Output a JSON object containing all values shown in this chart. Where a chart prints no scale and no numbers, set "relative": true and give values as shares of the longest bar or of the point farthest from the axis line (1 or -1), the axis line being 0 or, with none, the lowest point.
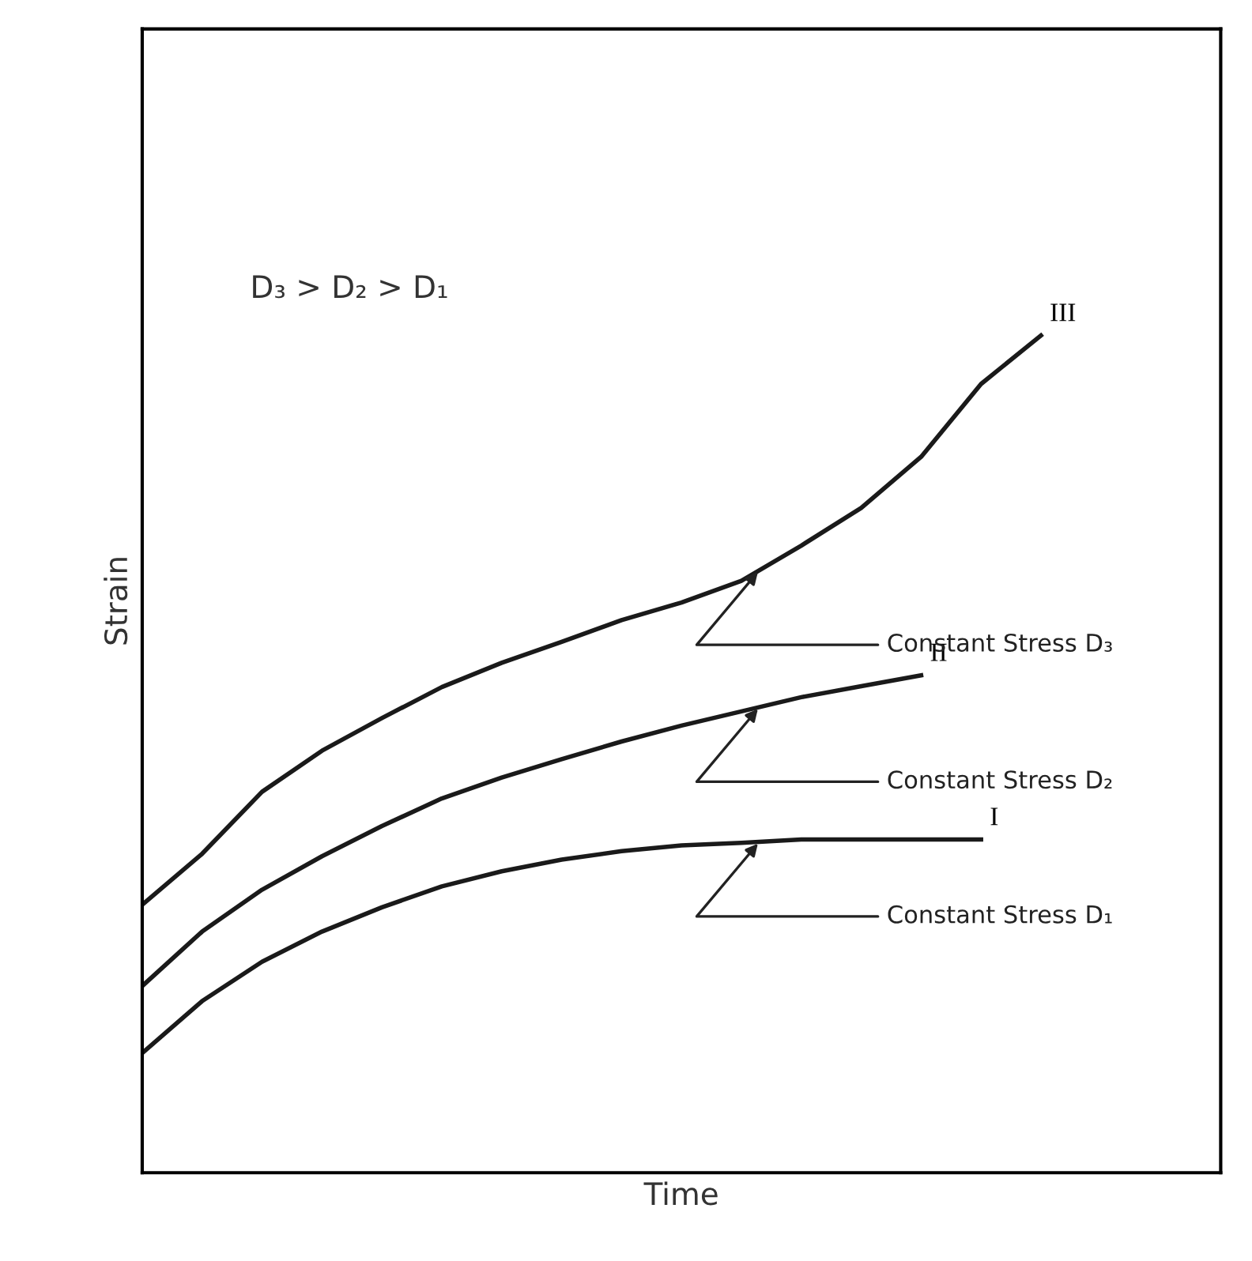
{
  "chart_data": {
    "type": "line",
    "relative": true,
    "xlabel": "Time",
    "ylabel": "Strain",
    "tick_labels": false,
    "legend": false,
    "marker": "none",
    "line_style": "solid",
    "categories": [
      null,
      null,
      null,
      null,
      null,
      null,
      null,
      null,
      null,
      null,
      null,
      null,
      null,
      null,
      null,
      null,
      null,
      null,
      null
    ],
    "series": [
      {
        "name": "I",
        "color": "#1a1a1a",
        "values": [
          0.143,
          0.205,
          0.252,
          0.288,
          0.317,
          0.342,
          0.36,
          0.374,
          0.384,
          0.391,
          0.394,
          0.398,
          0.398,
          0.398,
          0.398,
          null,
          null,
          null,
          null
        ]
      },
      {
        "name": "II",
        "color": "#1a1a1a",
        "values": [
          0.223,
          0.288,
          0.338,
          0.378,
          0.414,
          0.447,
          0.472,
          0.494,
          0.515,
          0.534,
          0.551,
          0.568,
          0.581,
          0.594,
          null,
          null,
          null,
          null,
          null
        ]
      },
      {
        "name": "III",
        "color": "#1a1a1a",
        "values": [
          0.32,
          0.381,
          0.455,
          0.504,
          0.543,
          0.58,
          0.609,
          0.634,
          0.66,
          0.681,
          0.707,
          0.749,
          0.794,
          0.855,
          0.942,
          1,
          null,
          null,
          null
        ]
      }
    ],
    "annotations": [
      "D₃ > D₂ > D₁",
      "Constant Stress D₃",
      "Constant Stress D₂",
      "Constant Stress D₁"
    ]
  }
}
